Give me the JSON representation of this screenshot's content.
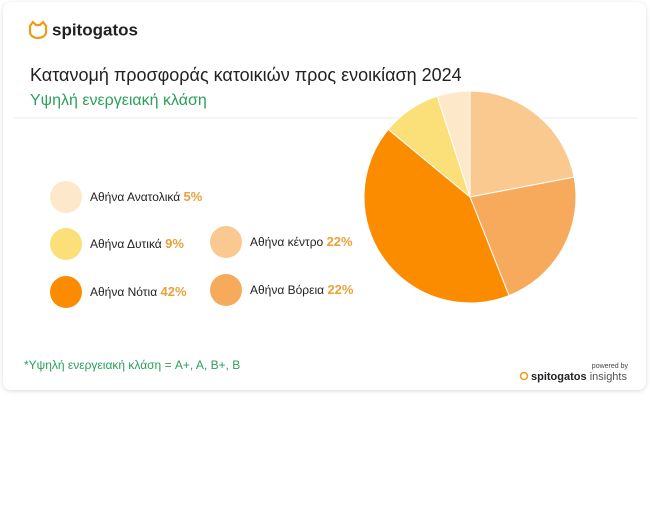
{
  "brand": "spitogatos",
  "chart_data": {
    "type": "pie",
    "title": "Κατανομή προσφοράς κατοικιών προς ενοικίαση 2024",
    "subtitle": "Υψηλή ενεργειακή κλάση",
    "categories": [
      "Αθήνα κέντρο",
      "Αθήνα Βόρεια",
      "Αθήνα Νότια",
      "Αθήνα Δυτικά",
      "Αθήνα Ανατολικά"
    ],
    "values": [
      22,
      22,
      42,
      9,
      5
    ],
    "value_labels": [
      "22%",
      "22%",
      "42%",
      "9%",
      "5%"
    ],
    "colors": [
      "#f9c98f",
      "#f7a95c",
      "#fb8c00",
      "#fbe07a",
      "#fde9c9"
    ]
  },
  "footnote": "*Υψηλή ενεργειακή κλάση = A+, A, B+, B",
  "powered_by": "powered by",
  "footer_brand": "spitogatos",
  "footer_brand_suffix": "insights"
}
